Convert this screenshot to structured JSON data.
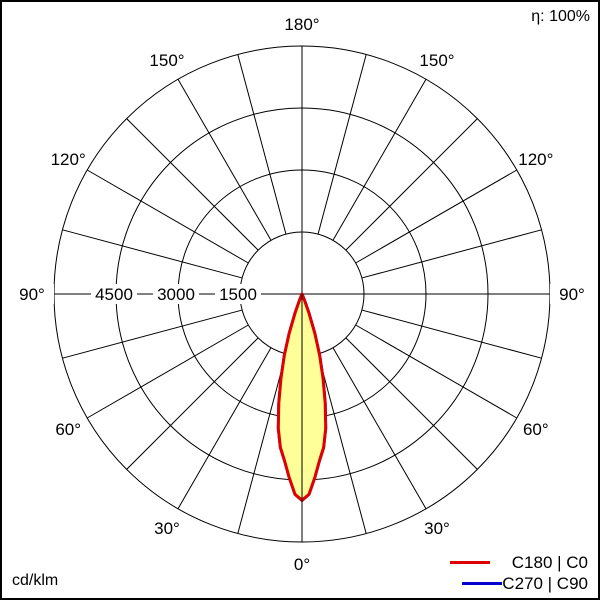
{
  "efficiency": "η: 100%",
  "unit": "cd/klm",
  "chart_data": {
    "type": "polar",
    "title": "",
    "radial_unit": "cd/klm",
    "radial_max": 6000,
    "ring_values": [
      1500,
      3000,
      4500,
      6000
    ],
    "ring_labels": [
      "1500",
      "3000",
      "4500"
    ],
    "spoke_step_deg": 15,
    "angle_labels": [
      {
        "angle": 0,
        "text": "0°"
      },
      {
        "angle": 30,
        "text": "30°"
      },
      {
        "angle": -30,
        "text": "30°"
      },
      {
        "angle": 60,
        "text": "60°"
      },
      {
        "angle": -60,
        "text": "60°"
      },
      {
        "angle": 90,
        "text": "90°"
      },
      {
        "angle": -90,
        "text": "90°"
      },
      {
        "angle": 120,
        "text": "120°"
      },
      {
        "angle": -120,
        "text": "120°"
      },
      {
        "angle": 150,
        "text": "150°"
      },
      {
        "angle": -150,
        "text": "150°"
      },
      {
        "angle": 180,
        "text": "180°"
      }
    ],
    "grid": true,
    "legend_position": "bottom-right",
    "fill_color": "#ffff99",
    "series": [
      {
        "name": "C270 | C90",
        "color": "#0000cc",
        "gamma": [
          0,
          2,
          4,
          6,
          8,
          10,
          12,
          14,
          16,
          18,
          20,
          22,
          24
        ],
        "intensity": [
          4990,
          4850,
          4450,
          4050,
          3750,
          3300,
          2700,
          2100,
          1550,
          1000,
          480,
          150,
          0
        ]
      },
      {
        "name": "C180 | C0",
        "color": "#e00000",
        "gamma": [
          0,
          2,
          4,
          6,
          8,
          10,
          12,
          14,
          16,
          18,
          20,
          22,
          24
        ],
        "intensity": [
          4990,
          4850,
          4450,
          4050,
          3750,
          3300,
          2700,
          2100,
          1550,
          1000,
          480,
          150,
          0
        ]
      }
    ]
  }
}
